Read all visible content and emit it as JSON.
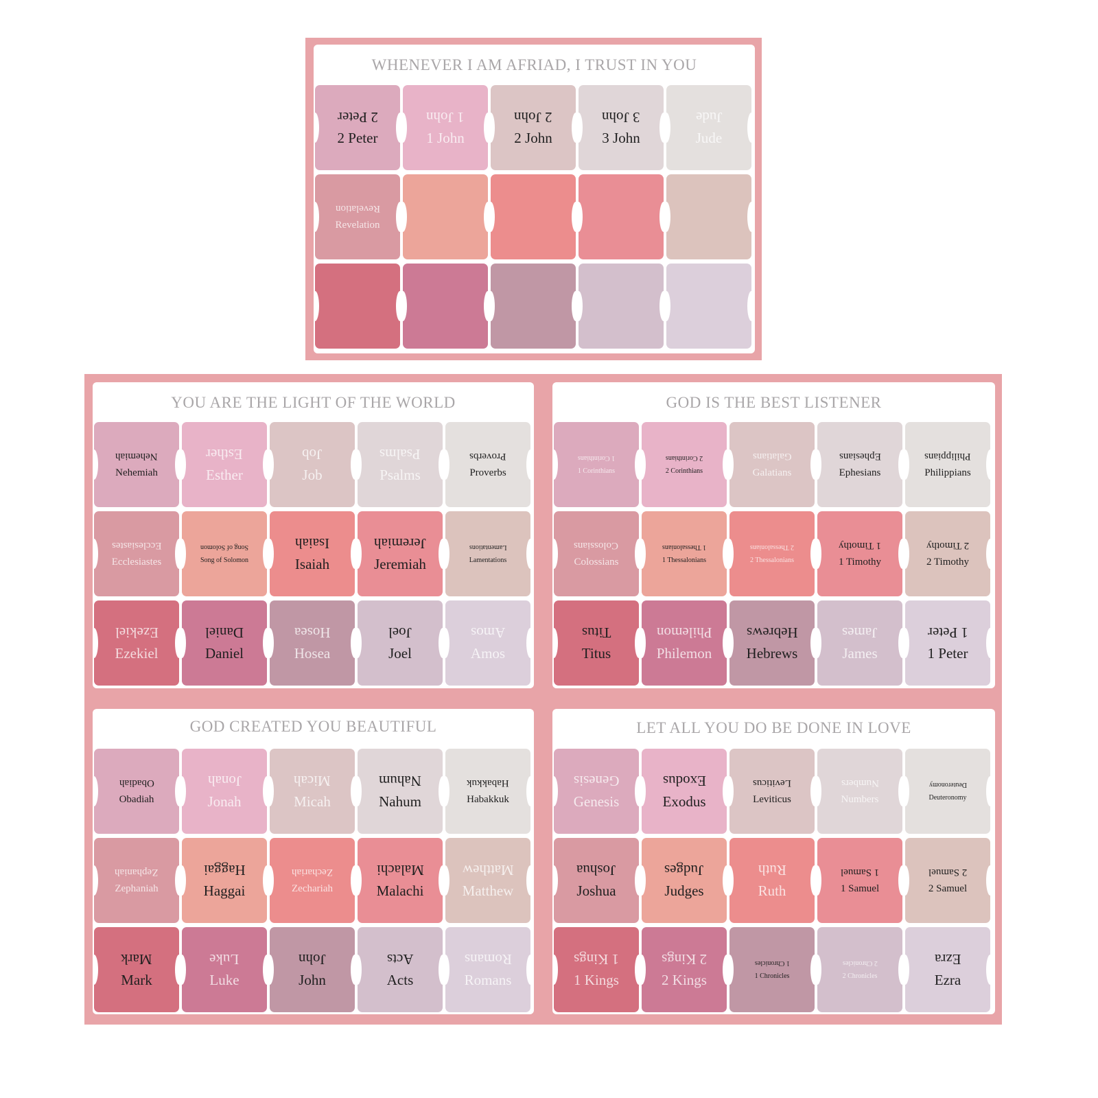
{
  "palette": [
    [
      "#dcaabd",
      "#e8b3c8",
      "#dcc5c5",
      "#e0d6d8",
      "#e4e0de"
    ],
    [
      "#d99aa2",
      "#eca59a",
      "#ec8d8d",
      "#e98e95",
      "#dcc3bd"
    ],
    [
      "#d4707f",
      "#cc7a95",
      "#c097a5",
      "#d3bfcc",
      "#dccfdb"
    ]
  ],
  "sheets": [
    {
      "title": "WHENEVER I AM AFRIAD, I TRUST IN YOU",
      "tabs": [
        {
          "name": "2 Peter",
          "tone": "dark",
          "size": ""
        },
        {
          "name": "1 John",
          "tone": "light",
          "size": ""
        },
        {
          "name": "2 John",
          "tone": "dark",
          "size": ""
        },
        {
          "name": "3 John",
          "tone": "dark",
          "size": ""
        },
        {
          "name": "Jude",
          "tone": "light",
          "size": ""
        },
        {
          "name": "Revelation",
          "tone": "light",
          "size": "small"
        },
        {
          "name": "",
          "tone": "light",
          "size": ""
        },
        {
          "name": "",
          "tone": "light",
          "size": ""
        },
        {
          "name": "",
          "tone": "light",
          "size": ""
        },
        {
          "name": "",
          "tone": "light",
          "size": ""
        },
        {
          "name": "",
          "tone": "light",
          "size": ""
        },
        {
          "name": "",
          "tone": "light",
          "size": ""
        },
        {
          "name": "",
          "tone": "light",
          "size": ""
        },
        {
          "name": "",
          "tone": "light",
          "size": ""
        },
        {
          "name": "",
          "tone": "light",
          "size": ""
        }
      ]
    },
    {
      "title": "YOU ARE THE LIGHT OF THE WORLD",
      "tabs": [
        {
          "name": "Nehemiah",
          "tone": "dark",
          "size": "small"
        },
        {
          "name": "Esther",
          "tone": "light",
          "size": ""
        },
        {
          "name": "Job",
          "tone": "light",
          "size": ""
        },
        {
          "name": "Psalms",
          "tone": "light",
          "size": ""
        },
        {
          "name": "Proverbs",
          "tone": "dark",
          "size": "small"
        },
        {
          "name": "Ecclesiastes",
          "tone": "light",
          "size": "small"
        },
        {
          "name": "Song of Solomon",
          "tone": "dark",
          "size": "tiny"
        },
        {
          "name": "Isaiah",
          "tone": "dark",
          "size": ""
        },
        {
          "name": "Jeremiah",
          "tone": "dark",
          "size": ""
        },
        {
          "name": "Lamentations",
          "tone": "dark",
          "size": "tiny"
        },
        {
          "name": "Ezekiel",
          "tone": "light",
          "size": ""
        },
        {
          "name": "Daniel",
          "tone": "dark",
          "size": ""
        },
        {
          "name": "Hosea",
          "tone": "light",
          "size": ""
        },
        {
          "name": "Joel",
          "tone": "dark",
          "size": ""
        },
        {
          "name": "Amos",
          "tone": "light",
          "size": ""
        }
      ]
    },
    {
      "title": "GOD IS THE BEST LISTENER",
      "tabs": [
        {
          "name": "1 Corinthians",
          "tone": "light",
          "size": "tiny"
        },
        {
          "name": "2 Corinthians",
          "tone": "dark",
          "size": "tiny"
        },
        {
          "name": "Galatians",
          "tone": "light",
          "size": "small"
        },
        {
          "name": "Ephesians",
          "tone": "dark",
          "size": "small"
        },
        {
          "name": "Philippians",
          "tone": "dark",
          "size": "small"
        },
        {
          "name": "Colossians",
          "tone": "light",
          "size": "small"
        },
        {
          "name": "1 Thessalonians",
          "tone": "dark",
          "size": "tiny"
        },
        {
          "name": "2 Thessalonians",
          "tone": "light",
          "size": "tiny"
        },
        {
          "name": "1 Timothy",
          "tone": "dark",
          "size": "small"
        },
        {
          "name": "2 Timothy",
          "tone": "dark",
          "size": "small"
        },
        {
          "name": "Titus",
          "tone": "dark",
          "size": ""
        },
        {
          "name": "Philemon",
          "tone": "light",
          "size": ""
        },
        {
          "name": "Hebrews",
          "tone": "dark",
          "size": ""
        },
        {
          "name": "James",
          "tone": "light",
          "size": ""
        },
        {
          "name": "1 Peter",
          "tone": "dark",
          "size": ""
        }
      ]
    },
    {
      "title": "GOD CREATED YOU BEAUTIFUL",
      "tabs": [
        {
          "name": "Obadiah",
          "tone": "dark",
          "size": "small"
        },
        {
          "name": "Jonah",
          "tone": "light",
          "size": ""
        },
        {
          "name": "Micah",
          "tone": "light",
          "size": ""
        },
        {
          "name": "Nahum",
          "tone": "dark",
          "size": ""
        },
        {
          "name": "Habakkuk",
          "tone": "dark",
          "size": "small"
        },
        {
          "name": "Zephaniah",
          "tone": "light",
          "size": "small"
        },
        {
          "name": "Haggai",
          "tone": "dark",
          "size": ""
        },
        {
          "name": "Zechariah",
          "tone": "light",
          "size": "small"
        },
        {
          "name": "Malachi",
          "tone": "dark",
          "size": ""
        },
        {
          "name": "Matthew",
          "tone": "light",
          "size": ""
        },
        {
          "name": "Mark",
          "tone": "dark",
          "size": ""
        },
        {
          "name": "Luke",
          "tone": "light",
          "size": ""
        },
        {
          "name": "John",
          "tone": "dark",
          "size": ""
        },
        {
          "name": "Acts",
          "tone": "dark",
          "size": ""
        },
        {
          "name": "Romans",
          "tone": "light",
          "size": ""
        }
      ]
    },
    {
      "title": "LET ALL YOU DO BE DONE IN LOVE",
      "tabs": [
        {
          "name": "Genesis",
          "tone": "light",
          "size": ""
        },
        {
          "name": "Exodus",
          "tone": "dark",
          "size": ""
        },
        {
          "name": "Leviticus",
          "tone": "dark",
          "size": "small"
        },
        {
          "name": "Numbers",
          "tone": "light",
          "size": "small"
        },
        {
          "name": "Deuteronomy",
          "tone": "dark",
          "size": "tiny"
        },
        {
          "name": "Joshua",
          "tone": "dark",
          "size": ""
        },
        {
          "name": "Judges",
          "tone": "dark",
          "size": ""
        },
        {
          "name": "Ruth",
          "tone": "light",
          "size": ""
        },
        {
          "name": "1 Samuel",
          "tone": "dark",
          "size": "small"
        },
        {
          "name": "2 Samuel",
          "tone": "dark",
          "size": "small"
        },
        {
          "name": "1 Kings",
          "tone": "light",
          "size": ""
        },
        {
          "name": "2 Kings",
          "tone": "light",
          "size": ""
        },
        {
          "name": "1 Chronicles",
          "tone": "dark",
          "size": "tiny"
        },
        {
          "name": "2 Chronicles",
          "tone": "light",
          "size": "tiny"
        },
        {
          "name": "Ezra",
          "tone": "dark",
          "size": ""
        }
      ]
    }
  ]
}
